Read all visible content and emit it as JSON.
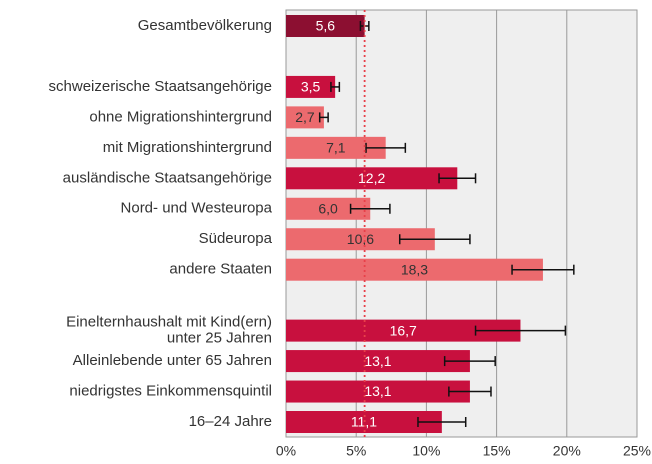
{
  "chart_data": {
    "type": "hbar",
    "categories": [
      "Gesamtbevölkerung",
      null,
      "schweizerische Staatsangehörige",
      "ohne Migrationshintergrund",
      "mit Migrationshintergrund",
      "ausländische Staatsangehörige",
      "Nord- und Westeuropa",
      "Südeuropa",
      "andere Staaten",
      null,
      "Einelternhaushalt mit Kind(ern)\nunter 25 Jahren",
      "Alleinlebende unter 65 Jahren",
      "niedrigstes Einkommensquintil",
      "16–24 Jahre"
    ],
    "values": [
      5.6,
      null,
      3.5,
      2.7,
      7.1,
      12.2,
      6.0,
      10.6,
      18.3,
      null,
      16.7,
      13.1,
      13.1,
      11.1
    ],
    "value_labels": [
      "5,6",
      null,
      "3,5",
      "2,7",
      "7,1",
      "12,2",
      "6,0",
      "10,6",
      "18,3",
      null,
      "16,7",
      "13,1",
      "13,1",
      "11,1"
    ],
    "errors": [
      0.3,
      null,
      0.3,
      0.3,
      1.4,
      1.3,
      1.4,
      2.5,
      2.2,
      null,
      3.2,
      1.8,
      1.5,
      1.7
    ],
    "colors": [
      "#8c0f31",
      null,
      "#c8103e",
      "#ec6a6e",
      "#ec6a6e",
      "#c8103e",
      "#ec6a6e",
      "#ec6a6e",
      "#ec6a6e",
      null,
      "#c8103e",
      "#c8103e",
      "#c8103e",
      "#c8103e"
    ],
    "reference_line": {
      "value_of": 0,
      "color": "#e8404a"
    },
    "xlim": [
      0,
      25
    ],
    "xticks": [
      {
        "value": 0,
        "label": "0%"
      },
      {
        "value": 5,
        "label": "5%"
      },
      {
        "value": 10,
        "label": "10%"
      },
      {
        "value": 15,
        "label": "15%"
      },
      {
        "value": 20,
        "label": "20%"
      },
      {
        "value": 25,
        "label": "25%"
      }
    ],
    "grid": true
  }
}
